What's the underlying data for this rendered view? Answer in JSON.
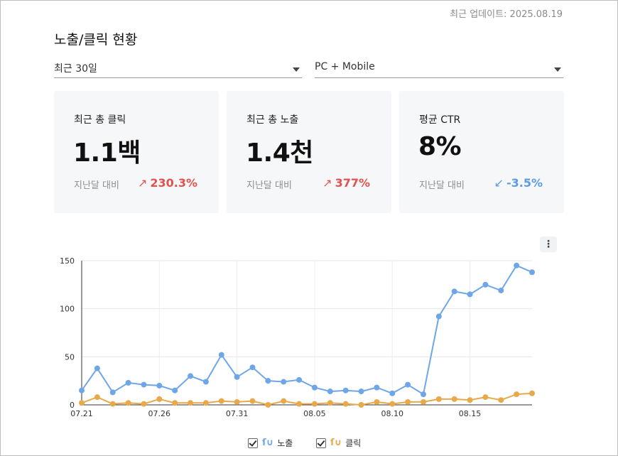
{
  "header": {
    "updated": "최근 업데이트: 2025.08.19",
    "title": "노출/클릭 현황"
  },
  "filters": {
    "period": "최근 30일",
    "device": "PC + Mobile"
  },
  "cards": [
    {
      "label": "최근 총 클릭",
      "value": "1.1백",
      "compare_label": "지난달 대비",
      "change": "230.3%",
      "direction": "up",
      "arrow": "↗"
    },
    {
      "label": "최근 총 노출",
      "value": "1.4천",
      "compare_label": "지난달 대비",
      "change": "377%",
      "direction": "up",
      "arrow": "↗"
    },
    {
      "label": "평균 CTR",
      "value": "8%",
      "compare_label": "지난달 대비",
      "change": "-3.5%",
      "direction": "down",
      "arrow": "↙"
    }
  ],
  "colors": {
    "impressions": "#6ea6e8",
    "clicks": "#e8a94a",
    "up": "#e0524f",
    "down": "#5b9be6",
    "grid": "#e6e6e6"
  },
  "icons": {
    "more": "more-vertical-icon",
    "checkbox": "checkbox-checked-icon",
    "series_symbol": "wave-icon"
  },
  "chart_data": {
    "type": "line",
    "x": [
      "07.21",
      "07.22",
      "07.23",
      "07.24",
      "07.25",
      "07.26",
      "07.27",
      "07.28",
      "07.29",
      "07.30",
      "07.31",
      "08.01",
      "08.02",
      "08.03",
      "08.04",
      "08.05",
      "08.06",
      "08.07",
      "08.08",
      "08.09",
      "08.10",
      "08.11",
      "08.12",
      "08.13",
      "08.14",
      "08.15",
      "08.16",
      "08.17",
      "08.18",
      "08.19"
    ],
    "x_ticks": [
      "07.21",
      "07.26",
      "07.31",
      "08.05",
      "08.10",
      "08.15"
    ],
    "ylim": [
      0,
      150
    ],
    "y_ticks": [
      0,
      50,
      100,
      150
    ],
    "grid": true,
    "legend_position": "bottom",
    "series": [
      {
        "name": "노출",
        "values": [
          15,
          38,
          13,
          23,
          21,
          20,
          15,
          30,
          24,
          52,
          29,
          39,
          25,
          24,
          26,
          18,
          14,
          15,
          14,
          18,
          12,
          21,
          11,
          92,
          118,
          115,
          125,
          119,
          145,
          138
        ]
      },
      {
        "name": "클릭",
        "values": [
          2,
          8,
          1,
          2,
          1,
          6,
          2,
          2,
          2,
          4,
          3,
          4,
          0,
          4,
          1,
          1,
          2,
          1,
          0,
          3,
          1,
          3,
          3,
          6,
          6,
          5,
          8,
          5,
          11,
          12
        ]
      }
    ]
  }
}
